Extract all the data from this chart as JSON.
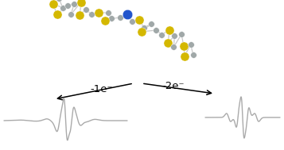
{
  "background_color": "#ffffff",
  "epr_color": "#aaaaaa",
  "epr_linewidth": 1.0,
  "text_color": "#000000",
  "label_1e": "-1e⁻",
  "label_2e": "-2e⁻",
  "label_fontsize": 9.5,
  "atom_colors": {
    "C": "#a0a8a8",
    "S": "#d4b800",
    "N": "#2255cc"
  },
  "atom_sizes": {
    "C": 5.5,
    "S": 8.0,
    "N": 9.0
  }
}
